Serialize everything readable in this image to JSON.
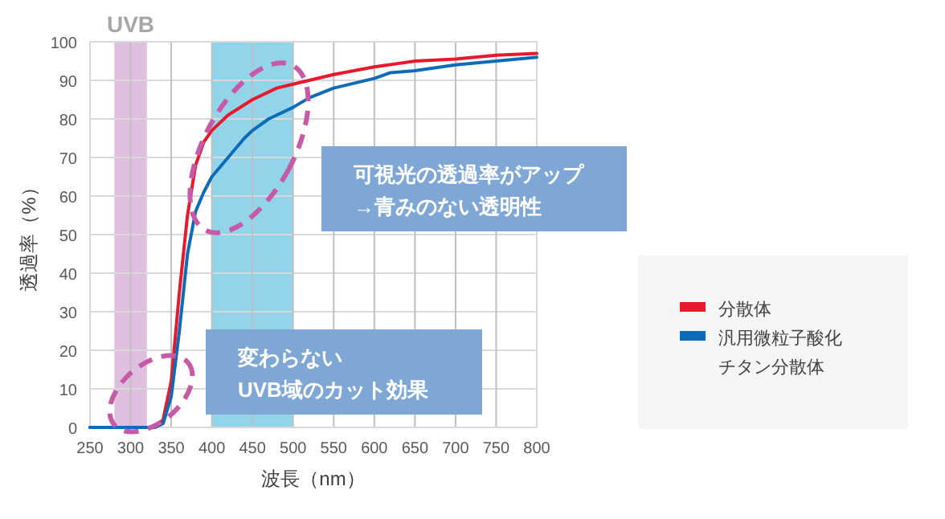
{
  "chart_data": {
    "type": "line",
    "xlabel": "波長（nm）",
    "ylabel": "透過率（%）",
    "xlim": [
      250,
      800
    ],
    "xticks": [
      250,
      300,
      350,
      400,
      450,
      500,
      550,
      600,
      650,
      700,
      750,
      800
    ],
    "ylim": [
      0,
      100
    ],
    "yticks": [
      0,
      10,
      20,
      30,
      40,
      50,
      60,
      70,
      80,
      90,
      100
    ],
    "grid": true,
    "legend": "right",
    "series": [
      {
        "name": "分散体",
        "color": "#e8192c",
        "x": [
          250,
          330,
          340,
          350,
          360,
          370,
          380,
          390,
          400,
          420,
          450,
          480,
          500,
          550,
          600,
          650,
          700,
          750,
          800
        ],
        "values": [
          0,
          0,
          2,
          12,
          35,
          55,
          68,
          74,
          77,
          81,
          85,
          88,
          89,
          91.5,
          93.5,
          95,
          95.5,
          96.5,
          97
        ]
      },
      {
        "name": "汎用微粒子酸化チタン分散体",
        "color": "#0e6bb8",
        "x": [
          250,
          330,
          340,
          350,
          360,
          370,
          380,
          390,
          400,
          420,
          440,
          450,
          470,
          500,
          520,
          550,
          600,
          620,
          650,
          700,
          750,
          800
        ],
        "values": [
          0,
          0,
          1,
          8,
          25,
          45,
          56,
          61,
          65,
          70,
          75,
          77,
          80,
          83,
          85.5,
          88,
          90.5,
          92,
          92.5,
          94,
          95,
          96
        ]
      }
    ],
    "bands": [
      {
        "axis": "x",
        "from": 280,
        "to": 320,
        "label": "UVB",
        "color": "#d8b4d8"
      },
      {
        "axis": "x",
        "from": 400,
        "to": 500,
        "color": "#7fcde6"
      }
    ],
    "annotations": [
      "可視光の透過率がアップ\n→青みのない透明性",
      "変わらない\nUVB域のカット効果"
    ]
  }
}
